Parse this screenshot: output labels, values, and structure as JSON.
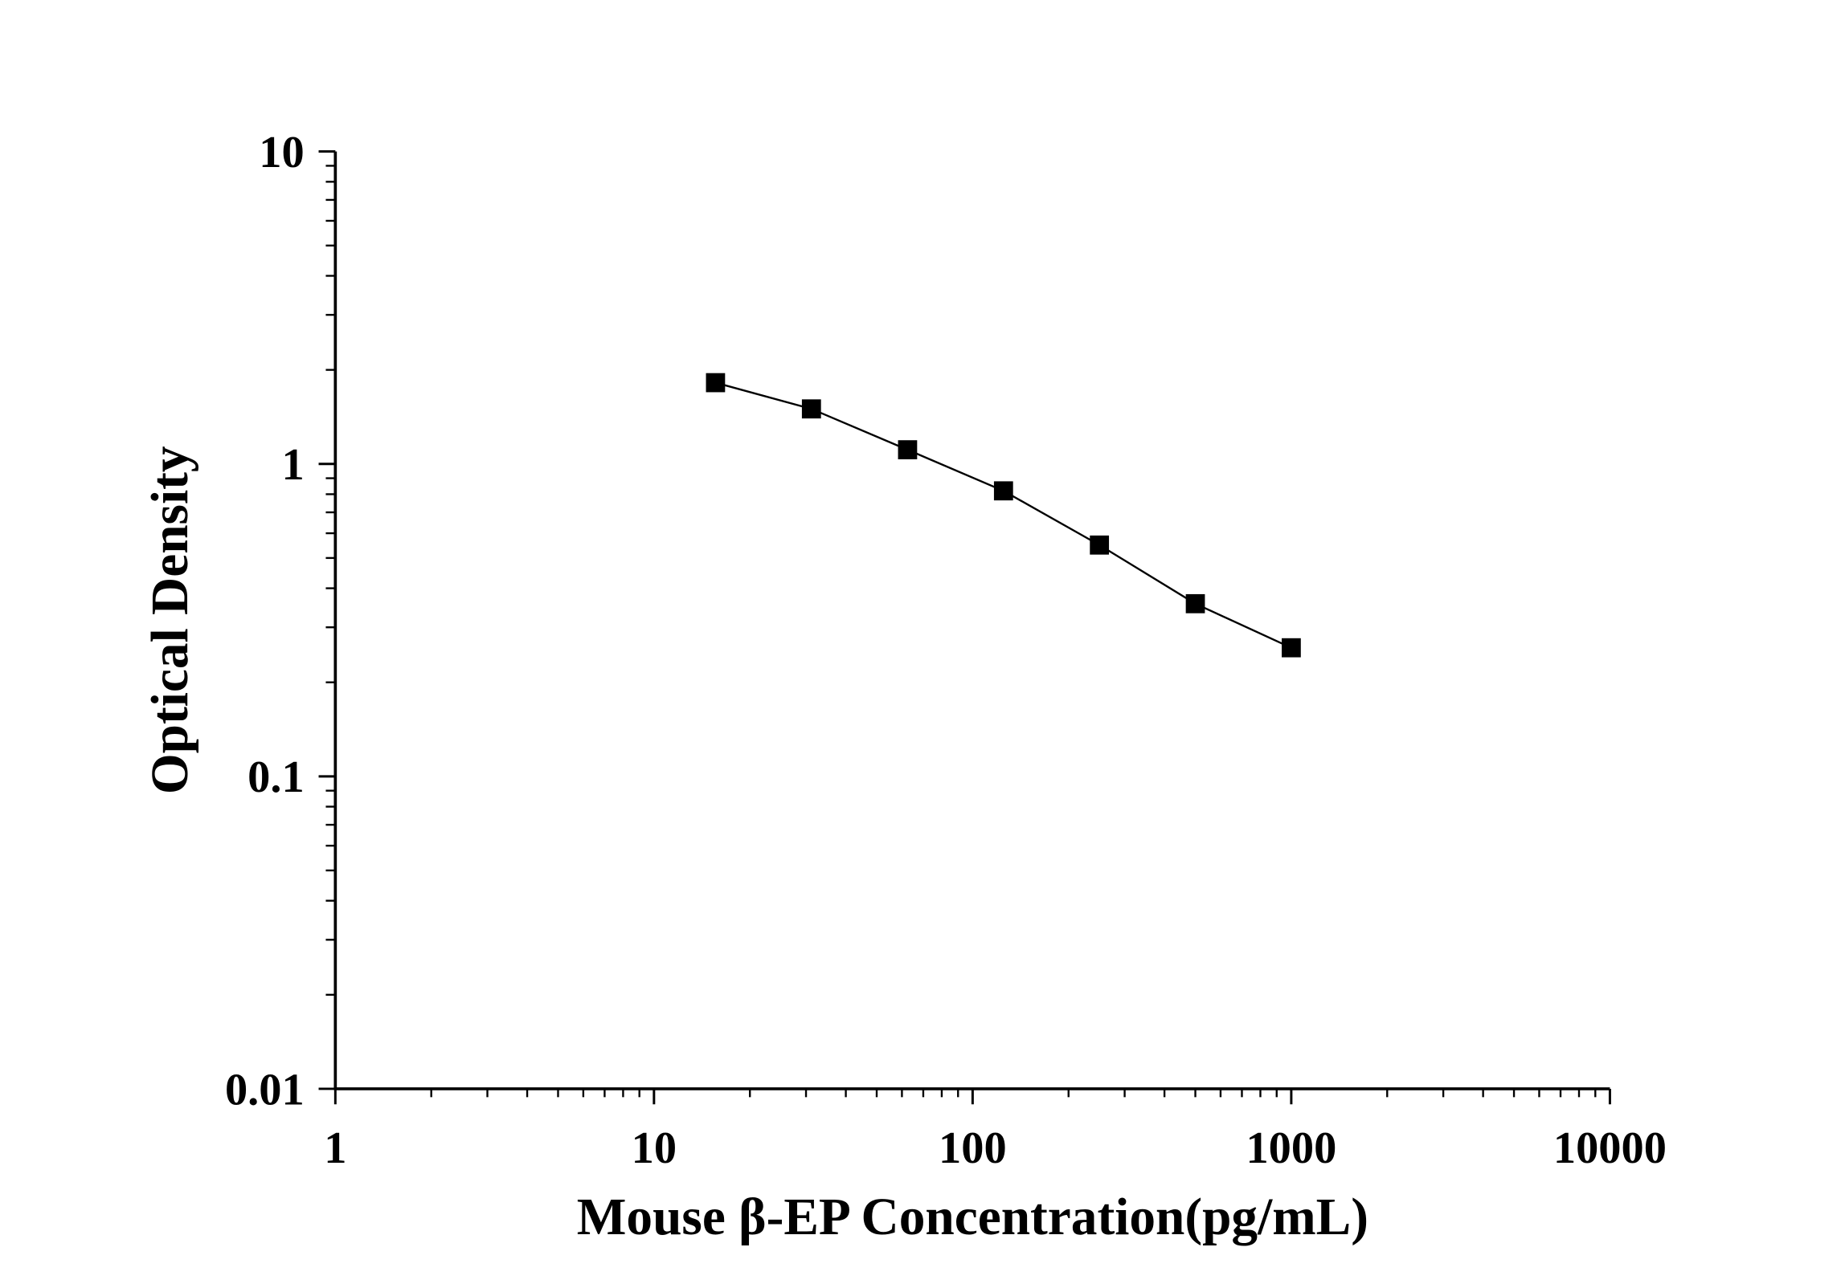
{
  "chart_data": {
    "type": "line",
    "title": "",
    "xlabel": "Mouse β-EP Concentration(pg/mL)",
    "ylabel": "Optical Density",
    "x_scale": "log",
    "y_scale": "log",
    "xlim": [
      1,
      10000
    ],
    "ylim": [
      0.01,
      10
    ],
    "x_ticks": [
      "1",
      "10",
      "100",
      "1000",
      "10000"
    ],
    "y_ticks": [
      "0.01",
      "0.1",
      "1",
      "10"
    ],
    "grid": false,
    "marker": "square",
    "color": "#000000",
    "series": [
      {
        "x": [
          15.6,
          31.2,
          62.5,
          125,
          250,
          500,
          1000
        ],
        "y": [
          1.82,
          1.5,
          1.11,
          0.82,
          0.55,
          0.357,
          0.258
        ]
      }
    ]
  }
}
